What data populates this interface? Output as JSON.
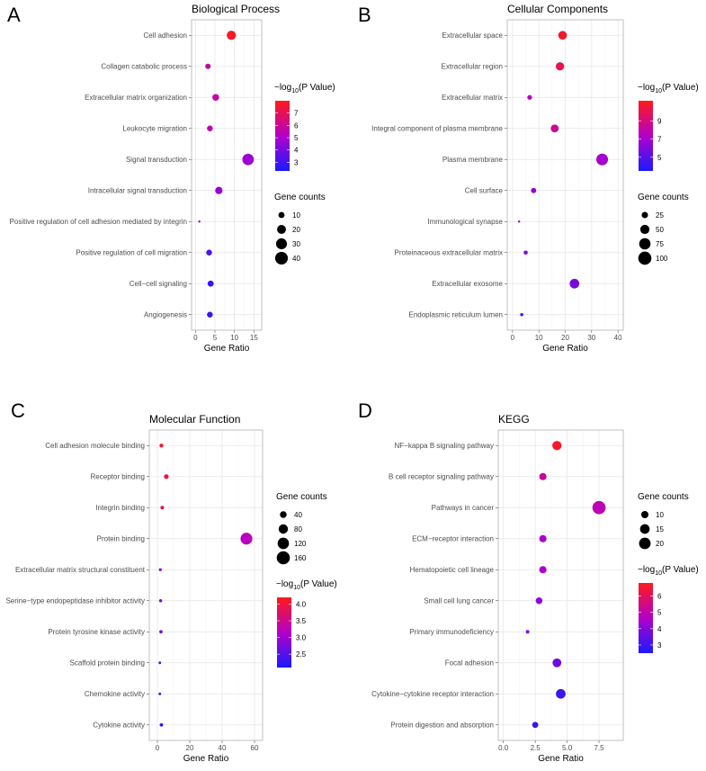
{
  "chart_data": [
    {
      "type": "scatter",
      "panel_label": "A",
      "title": "Biological Process",
      "xlabel": "Gene Ratio",
      "xlim": [
        -1,
        17
      ],
      "xticks": [
        0,
        5,
        10,
        15
      ],
      "categories": [
        "Cell adhesion",
        "Collagen catabolic process",
        "Extracellular matrix organization",
        "Leukocyte migration",
        "Signal transduction",
        "Intracellular signal transduction",
        "Positive regulation of cell adhesion mediated by integrin",
        "Positive regulation of cell migration",
        "Cell−cell signaling",
        "Angiogenesis"
      ],
      "x": [
        9.2,
        3.2,
        5.2,
        3.7,
        13.5,
        6.0,
        1.0,
        3.5,
        3.9,
        3.7
      ],
      "neglog10p": [
        7.8,
        5.8,
        5.6,
        5.5,
        4.7,
        4.6,
        4.2,
        3.2,
        2.8,
        2.8
      ],
      "gene_counts": [
        21,
        8,
        12,
        9,
        33,
        14,
        2,
        9,
        10,
        9
      ],
      "color_scale": {
        "title_prefix": "−log",
        "title_sub": "10",
        "title_suffix": "(P Value)",
        "min": 2.3,
        "max": 8.0,
        "ticks": [
          3,
          4,
          5,
          6,
          7
        ]
      },
      "size_scale": {
        "title": "Gene counts",
        "min": 2,
        "max": 45,
        "breaks": [
          10,
          20,
          30,
          40
        ]
      },
      "legend_order": "color-first"
    },
    {
      "type": "scatter",
      "panel_label": "B",
      "title": "Cellular Components",
      "xlabel": "Gene Ratio",
      "xlim": [
        -2,
        42
      ],
      "xticks": [
        0,
        10,
        20,
        30,
        40
      ],
      "categories": [
        "Extracellular space",
        "Extracellular region",
        "Extracellular matrix",
        "Integral component of plasma membrane",
        "Plasma membrane",
        "Cell surface",
        "Immunological synapse",
        "Proteinaceous extracellular matrix",
        "Extracellular exosome",
        "Endoplasmic reticulum lumen"
      ],
      "x": [
        19,
        18,
        6.5,
        16,
        34,
        8,
        2.5,
        5,
        23.5,
        3.5
      ],
      "neglog10p": [
        10.8,
        10.0,
        7.5,
        8.5,
        7.0,
        6.5,
        6.0,
        6.2,
        5.8,
        4.0
      ],
      "gene_counts": [
        45,
        42,
        15,
        38,
        80,
        18,
        5,
        12,
        55,
        8
      ],
      "color_scale": {
        "title_prefix": "−log",
        "title_sub": "10",
        "title_suffix": "(P Value)",
        "min": 3.5,
        "max": 11.2,
        "ticks": [
          5,
          7,
          9
        ]
      },
      "size_scale": {
        "title": "Gene counts",
        "min": 5,
        "max": 105,
        "breaks": [
          25,
          50,
          75,
          100
        ]
      },
      "legend_order": "color-first"
    },
    {
      "type": "scatter",
      "panel_label": "C",
      "title": "Molecular Function",
      "xlabel": "Gene Ratio",
      "xlim": [
        -5,
        65
      ],
      "xticks": [
        0,
        20,
        40,
        60
      ],
      "categories": [
        "Cell adhesion molecule binding",
        "Receptor binding",
        "Integrin binding",
        "Protein binding",
        "Extracellular matrix structural constituent",
        "Serine−type endopeptidase inhibitor activity",
        "Protein tyrosine kinase activity",
        "Scaffold protein binding",
        "Chemokine activity",
        "Cytokine activity"
      ],
      "x": [
        2.5,
        5.5,
        3,
        55,
        1.8,
        2,
        2.2,
        1.5,
        1.5,
        2.5
      ],
      "neglog10p": [
        4.1,
        4.0,
        3.8,
        3.2,
        2.9,
        2.8,
        2.7,
        2.4,
        2.3,
        2.2
      ],
      "gene_counts": [
        12,
        18,
        10,
        130,
        6,
        7,
        8,
        4,
        4,
        9
      ],
      "color_scale": {
        "title_prefix": "−log",
        "title_sub": "10",
        "title_suffix": "(P Value)",
        "min": 2.1,
        "max": 4.2,
        "ticks": [
          2.5,
          3.0,
          3.5,
          4.0
        ],
        "tick_labels": [
          "2.5",
          "3.0",
          "3.5",
          "4.0"
        ]
      },
      "size_scale": {
        "title": "Gene counts",
        "min": 2,
        "max": 170,
        "breaks": [
          40,
          80,
          120,
          160
        ]
      },
      "legend_order": "size-first"
    },
    {
      "type": "scatter",
      "panel_label": "D",
      "title": "KEGG",
      "xlabel": "Gene Ratio",
      "xlim": [
        -0.4,
        9.4
      ],
      "xticks": [
        0,
        2.5,
        5,
        7.5
      ],
      "xtick_labels": [
        "0.0",
        "2.5",
        "5.0",
        "7.5"
      ],
      "categories": [
        "NF−kappa B signaling pathway",
        "B cell receptor signaling pathway",
        "Pathways in cancer",
        "ECM−receptor interaction",
        "Hematopoietic cell lineage",
        "Small cell lung cancer",
        "Primary immunodeficiency",
        "Focal adhesion",
        "Cytokine−cytokine receptor interaction",
        "Protein digestion and absorption"
      ],
      "x": [
        4.2,
        3.1,
        7.5,
        3.1,
        3.1,
        2.8,
        1.9,
        4.2,
        4.5,
        2.5
      ],
      "neglog10p": [
        6.6,
        5.2,
        4.9,
        4.5,
        4.5,
        4.1,
        4.0,
        3.7,
        3.0,
        2.9
      ],
      "gene_counts": [
        14,
        10,
        25,
        10,
        10,
        9,
        5,
        13,
        15,
        8
      ],
      "color_scale": {
        "title_prefix": "−log",
        "title_sub": "10",
        "title_suffix": "(P Value)",
        "min": 2.5,
        "max": 6.8,
        "ticks": [
          3,
          4,
          5,
          6
        ]
      },
      "size_scale": {
        "title": "Gene counts",
        "min": 4,
        "max": 26,
        "breaks": [
          10,
          15,
          20
        ]
      },
      "legend_order": "size-first"
    }
  ]
}
